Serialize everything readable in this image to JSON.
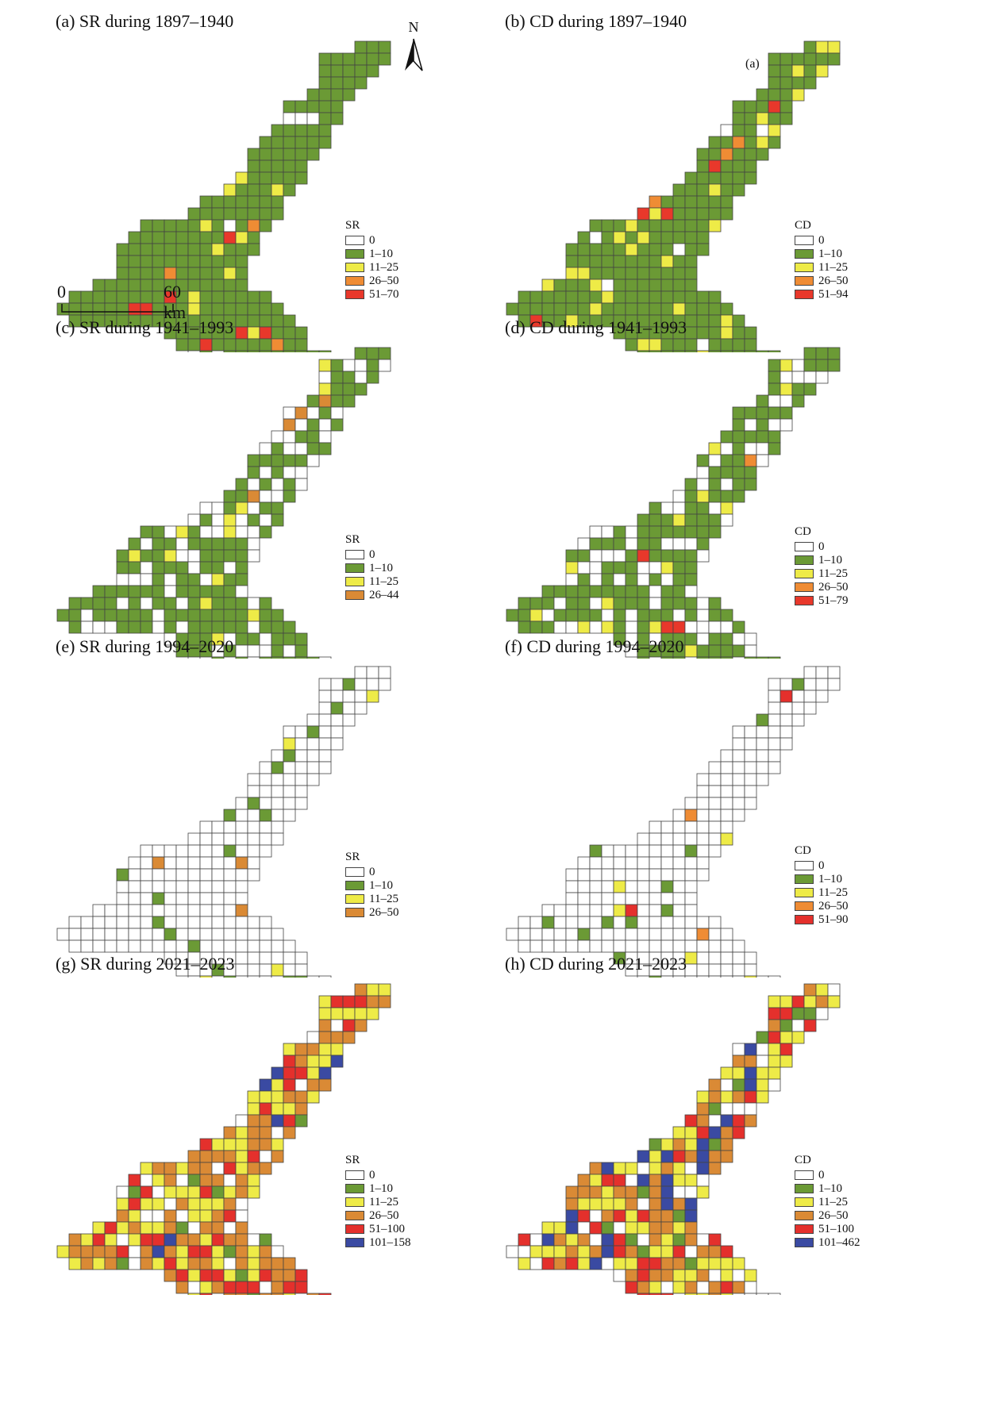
{
  "colors": {
    "c0": "#ffffff",
    "c1": "#6b9a35",
    "c2": "#eeeb47",
    "c3": "#ef8c34",
    "c4": "#e8382b",
    "c5": "#3a4aa2",
    "c3b": "#da8a35",
    "c4b": "#e4302c",
    "stroke": "#444444"
  },
  "north_arrow": {
    "label": "N"
  },
  "scale_bar": {
    "start_label": "0",
    "end_label": "60 km"
  },
  "panels": [
    {
      "id": "a",
      "title": "(a) SR during 1897–1940",
      "legend": {
        "title": "SR",
        "entries": [
          {
            "label": "0",
            "color": "#ffffff"
          },
          {
            "label": "1–10",
            "color": "#6b9a35"
          },
          {
            "label": "11–25",
            "color": "#eeeb47"
          },
          {
            "label": "26–50",
            "color": "#ef8c34"
          },
          {
            "label": "51–70",
            "color": "#e8382b"
          }
        ]
      },
      "mix": [
        0.02,
        0.9,
        0.05,
        0.015,
        0.015
      ]
    },
    {
      "id": "b",
      "title": "(b) CD during 1897–1940",
      "inset_label": "(a)",
      "legend": {
        "title": "CD",
        "entries": [
          {
            "label": "0",
            "color": "#ffffff"
          },
          {
            "label": "1–10",
            "color": "#6b9a35"
          },
          {
            "label": "11–25",
            "color": "#eeeb47"
          },
          {
            "label": "26–50",
            "color": "#ef8c34"
          },
          {
            "label": "51–94",
            "color": "#e8382b"
          }
        ]
      },
      "mix": [
        0.02,
        0.84,
        0.1,
        0.025,
        0.015
      ]
    },
    {
      "id": "c",
      "title": "(c) SR during 1941–1993",
      "legend": {
        "title": "SR",
        "entries": [
          {
            "label": "0",
            "color": "#ffffff"
          },
          {
            "label": "1–10",
            "color": "#6b9a35"
          },
          {
            "label": "11–25",
            "color": "#eeeb47"
          },
          {
            "label": "26–44",
            "color": "#da8a35"
          }
        ]
      },
      "mix": [
        0.35,
        0.59,
        0.05,
        0.01
      ]
    },
    {
      "id": "d",
      "title": "(d) CD during 1941–1993",
      "legend": {
        "title": "CD",
        "entries": [
          {
            "label": "0",
            "color": "#ffffff"
          },
          {
            "label": "1–10",
            "color": "#6b9a35"
          },
          {
            "label": "11–25",
            "color": "#eeeb47"
          },
          {
            "label": "26–50",
            "color": "#ef8c34"
          },
          {
            "label": "51–79",
            "color": "#e8382b"
          }
        ]
      },
      "mix": [
        0.3,
        0.6,
        0.08,
        0.01,
        0.01
      ]
    },
    {
      "id": "e",
      "title": "(e) SR during 1994–2020",
      "legend": {
        "title": "SR",
        "entries": [
          {
            "label": "0",
            "color": "#ffffff"
          },
          {
            "label": "1–10",
            "color": "#6b9a35"
          },
          {
            "label": "11–25",
            "color": "#eeeb47"
          },
          {
            "label": "26–50",
            "color": "#da8a35"
          }
        ]
      },
      "mix": [
        0.88,
        0.08,
        0.02,
        0.02
      ]
    },
    {
      "id": "f",
      "title": "(f) CD during 1994–2020",
      "legend": {
        "title": "CD",
        "entries": [
          {
            "label": "0",
            "color": "#ffffff"
          },
          {
            "label": "1–10",
            "color": "#6b9a35"
          },
          {
            "label": "11–25",
            "color": "#eeeb47"
          },
          {
            "label": "26–50",
            "color": "#ef8c34"
          },
          {
            "label": "51–90",
            "color": "#e4302c"
          }
        ]
      },
      "mix": [
        0.9,
        0.05,
        0.025,
        0.015,
        0.01
      ]
    },
    {
      "id": "g",
      "title": "(g) SR during 2021–2023",
      "legend": {
        "title": "SR",
        "entries": [
          {
            "label": "0",
            "color": "#ffffff"
          },
          {
            "label": "1–10",
            "color": "#6b9a35"
          },
          {
            "label": "11–25",
            "color": "#eeeb47"
          },
          {
            "label": "26–50",
            "color": "#da8a35"
          },
          {
            "label": "51–100",
            "color": "#e4302c"
          },
          {
            "label": "101–158",
            "color": "#3a4aa2"
          }
        ]
      },
      "mix": [
        0.12,
        0.04,
        0.3,
        0.34,
        0.16,
        0.04
      ]
    },
    {
      "id": "h",
      "title": "(h) CD during 2021–2023",
      "legend": {
        "title": "CD",
        "entries": [
          {
            "label": "0",
            "color": "#ffffff"
          },
          {
            "label": "1–10",
            "color": "#6b9a35"
          },
          {
            "label": "11–25",
            "color": "#eeeb47"
          },
          {
            "label": "26–50",
            "color": "#da8a35"
          },
          {
            "label": "51–100",
            "color": "#e4302c"
          },
          {
            "label": "101–462",
            "color": "#3a4aa2"
          }
        ]
      },
      "mix": [
        0.12,
        0.04,
        0.26,
        0.28,
        0.2,
        0.1
      ]
    }
  ]
}
